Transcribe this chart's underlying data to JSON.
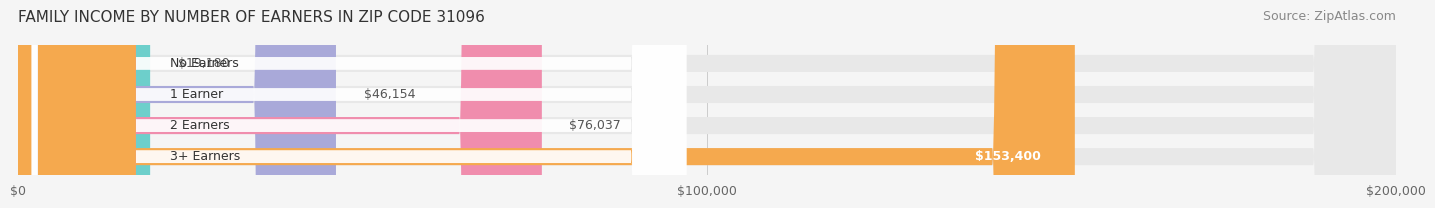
{
  "title": "FAMILY INCOME BY NUMBER OF EARNERS IN ZIP CODE 31096",
  "source": "Source: ZipAtlas.com",
  "categories": [
    "No Earners",
    "1 Earner",
    "2 Earners",
    "3+ Earners"
  ],
  "values": [
    19180,
    46154,
    76037,
    153400
  ],
  "value_labels": [
    "$19,180",
    "$46,154",
    "$76,037",
    "$153,400"
  ],
  "bar_colors": [
    "#6DCFCB",
    "#A9A9D9",
    "#F08DAD",
    "#F5A94E"
  ],
  "label_dot_colors": [
    "#6DCFCB",
    "#A9A9D9",
    "#F08DAD",
    "#F5A94E"
  ],
  "background_color": "#f5f5f5",
  "bar_bg_color": "#e8e8e8",
  "xlim": [
    0,
    200000
  ],
  "xtick_values": [
    0,
    100000,
    200000
  ],
  "xtick_labels": [
    "$0",
    "$100,000",
    "$200,000"
  ],
  "title_fontsize": 11,
  "source_fontsize": 9,
  "bar_height": 0.55,
  "bar_label_inside_threshold": 130000
}
